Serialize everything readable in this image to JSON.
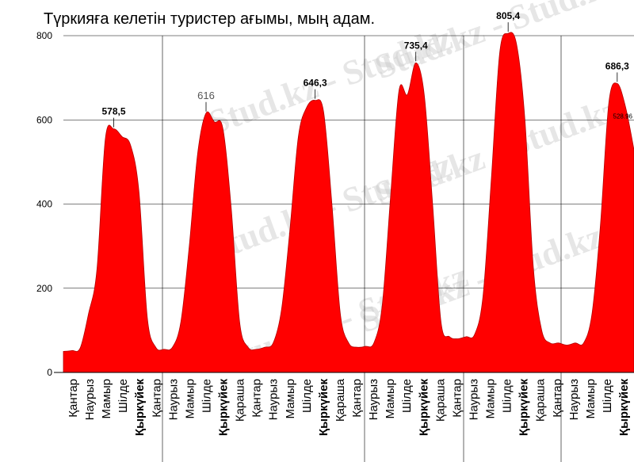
{
  "chart_data": {
    "type": "area",
    "title": "Түркияға келетін туристер ағымы, мың адам.",
    "xlabel": "",
    "ylabel": "",
    "ylim": [
      0,
      800
    ],
    "yticks": [
      0,
      200,
      400,
      600,
      800
    ],
    "grid": true,
    "color": "#ff0000",
    "x_tick_labels": [
      "Қантар",
      "Наурыз",
      "Мамыр",
      "Шілде",
      "Қыркүйек",
      "Қантар",
      "Наурыз",
      "Мамыр",
      "Шілде",
      "Қыркүйек",
      "Қараша",
      "Қантар",
      "Наурыз",
      "Мамыр",
      "Шілде",
      "Қыркүйек",
      "Қараша",
      "Қантар",
      "Наурыз",
      "Мамыр",
      "Шілде",
      "Қыркүйек",
      "Қараша",
      "Қантар",
      "Наурыз",
      "Мамыр",
      "Шілде",
      "Қыркүйек",
      "Қараша",
      "Қантар",
      "Наурыз",
      "Мамыр",
      "Шілде",
      "Қыркүйек"
    ],
    "bold_tick_labels": [
      "Қыркүйек"
    ],
    "series": [
      {
        "values": [
          50,
          52,
          58,
          140,
          245,
          555,
          578.5,
          560,
          540,
          430,
          130,
          60,
          55,
          60,
          120,
          300,
          520,
          616,
          595,
          580,
          390,
          120,
          60,
          55,
          60,
          70,
          150,
          340,
          560,
          630,
          646.3,
          620,
          400,
          140,
          70,
          60,
          62,
          70,
          160,
          420,
          670,
          660,
          735.4,
          660,
          400,
          120,
          85,
          80,
          85,
          90,
          180,
          460,
          760,
          805.4,
          780,
          600,
          250,
          100,
          70,
          70,
          65,
          70,
          70,
          140,
          350,
          640,
          686.3,
          630,
          528.96
        ]
      }
    ],
    "peak_labels": [
      {
        "index": 6,
        "value": 578.5,
        "label": "578,5"
      },
      {
        "index": 17,
        "value": 616,
        "label": "616"
      },
      {
        "index": 30,
        "value": 646.3,
        "label": "646,3"
      },
      {
        "index": 42,
        "value": 735.4,
        "label": "735,4"
      },
      {
        "index": 53,
        "value": 805.4,
        "label": "805,4"
      },
      {
        "index": 66,
        "value": 686.3,
        "label": "686,3"
      }
    ],
    "end_label": "528.96",
    "watermark": "Stud.kz - Stud.kz"
  }
}
